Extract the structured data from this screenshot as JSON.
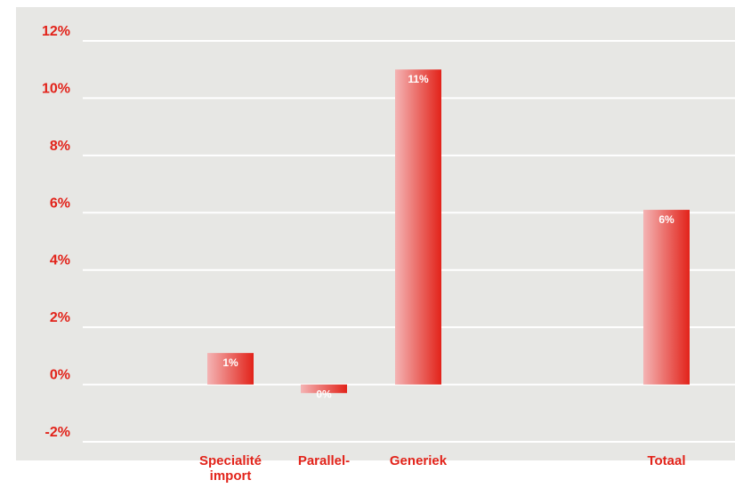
{
  "chart_data": {
    "type": "bar",
    "title": "",
    "xlabel": "",
    "ylabel": "",
    "categories": [
      [
        "Specialité",
        "import"
      ],
      [
        "Parallel-"
      ],
      [
        "Generiek"
      ],
      [
        ""
      ],
      [
        "Totaal"
      ]
    ],
    "values": [
      1.1,
      -0.3,
      11.0,
      null,
      6.1
    ],
    "data_labels": [
      "1%",
      "0%",
      "11%",
      "",
      "6%"
    ],
    "ylim": [
      -2,
      12
    ],
    "yticks": [
      -2,
      0,
      2,
      4,
      6,
      8,
      10,
      12
    ],
    "ytick_labels": [
      "-2%",
      "0%",
      "2%",
      "4%",
      "6%",
      "8%",
      "10%",
      "12%"
    ],
    "grid": true,
    "legend": "none",
    "colors": {
      "plot_background": "#e7e7e4",
      "gridline": "#ffffff",
      "text": "#e2231a",
      "bar_light": "#f4b4b4",
      "bar_dark": "#e2231a",
      "data_label": "#ffffff"
    }
  }
}
